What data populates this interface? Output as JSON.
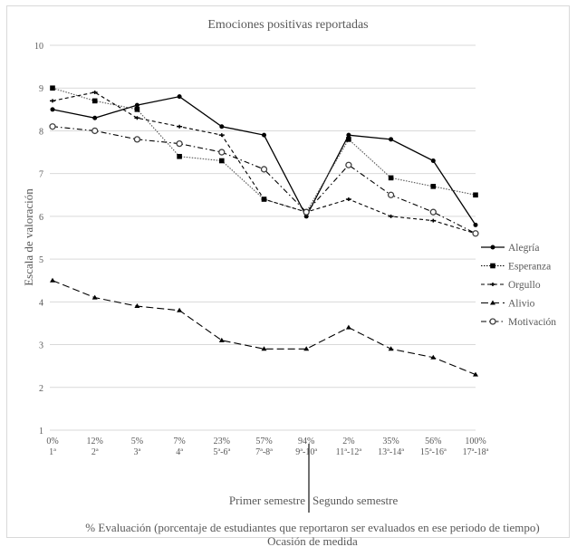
{
  "chart_data": {
    "type": "line",
    "title": "Emociones positivas reportadas",
    "ylabel": "Escala de valoración",
    "xlabel": "% Evaluación (porcentaje de estudiantes que reportaron ser evaluados en ese periodo de tiempo)",
    "xlabel2": "Ocasión de medida",
    "ylim": [
      1,
      10
    ],
    "yticks": [
      "1",
      "2",
      "3",
      "4",
      "5",
      "6",
      "7",
      "8",
      "9",
      "10"
    ],
    "grid": true,
    "legend_position": "right",
    "categories_pct": [
      "0%",
      "12%",
      "5%",
      "7%",
      "23%",
      "57%",
      "94%",
      "2%",
      "35%",
      "56%",
      "100%"
    ],
    "categories_occasion": [
      "1ª",
      "2ª",
      "3ª",
      "4ª",
      "5ª-6ª",
      "7ª-8ª",
      "9ª-10ª",
      "11ª-12ª",
      "13ª-14ª",
      "15ª-16ª",
      "17ª-18ª"
    ],
    "semester_labels": [
      "Primer semestre",
      "Segundo semestre"
    ],
    "series": [
      {
        "name": "Alegría",
        "values": [
          8.5,
          8.3,
          8.6,
          8.8,
          8.1,
          7.9,
          6.0,
          7.9,
          7.8,
          7.3,
          5.8
        ],
        "dash": "",
        "marker": "dot"
      },
      {
        "name": "Esperanza",
        "values": [
          9.0,
          8.7,
          8.5,
          7.4,
          7.3,
          6.4,
          6.1,
          7.8,
          6.9,
          6.7,
          6.5
        ],
        "dash": "1.5,1.5",
        "marker": "square"
      },
      {
        "name": "Orgullo",
        "values": [
          8.7,
          8.9,
          8.3,
          8.1,
          7.9,
          6.4,
          6.1,
          6.4,
          6.0,
          5.9,
          5.6
        ],
        "dash": "4,3",
        "marker": "plus"
      },
      {
        "name": "Alivio",
        "values": [
          4.5,
          4.1,
          3.9,
          3.8,
          3.1,
          2.9,
          2.9,
          3.4,
          2.9,
          2.7,
          2.3
        ],
        "dash": "8,4",
        "marker": "triangle"
      },
      {
        "name": "Motivación",
        "values": [
          8.1,
          8.0,
          7.8,
          7.7,
          7.5,
          7.1,
          6.1,
          7.2,
          6.5,
          6.1,
          5.6
        ],
        "dash": "6,3,1.5,3",
        "marker": "circle"
      }
    ]
  }
}
